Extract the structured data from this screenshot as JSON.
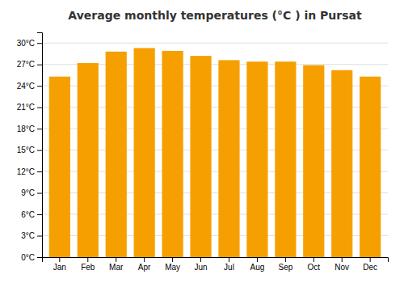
{
  "chart_data": {
    "type": "bar",
    "title": "Average monthly temperatures (°C ) in Pursat",
    "categories": [
      "Jan",
      "Feb",
      "Mar",
      "Apr",
      "May",
      "Jun",
      "Jul",
      "Aug",
      "Sep",
      "Oct",
      "Nov",
      "Dec"
    ],
    "values": [
      25.3,
      27.2,
      28.8,
      29.3,
      28.9,
      28.2,
      27.6,
      27.4,
      27.4,
      26.9,
      26.2,
      25.3
    ],
    "color": "#F5A000",
    "ylim": [
      0,
      31.5
    ],
    "yticks": [
      {
        "value": 0,
        "label": "0°C"
      },
      {
        "value": 3,
        "label": "3°C"
      },
      {
        "value": 6,
        "label": "6°C"
      },
      {
        "value": 9,
        "label": "9°C"
      },
      {
        "value": 12,
        "label": "12°C"
      },
      {
        "value": 15,
        "label": "15°C"
      },
      {
        "value": 18,
        "label": "18°C"
      },
      {
        "value": 21,
        "label": "21°C"
      },
      {
        "value": 24,
        "label": "24°C"
      },
      {
        "value": 27,
        "label": "27°C"
      },
      {
        "value": 30,
        "label": "30°C"
      }
    ],
    "grid": true
  }
}
